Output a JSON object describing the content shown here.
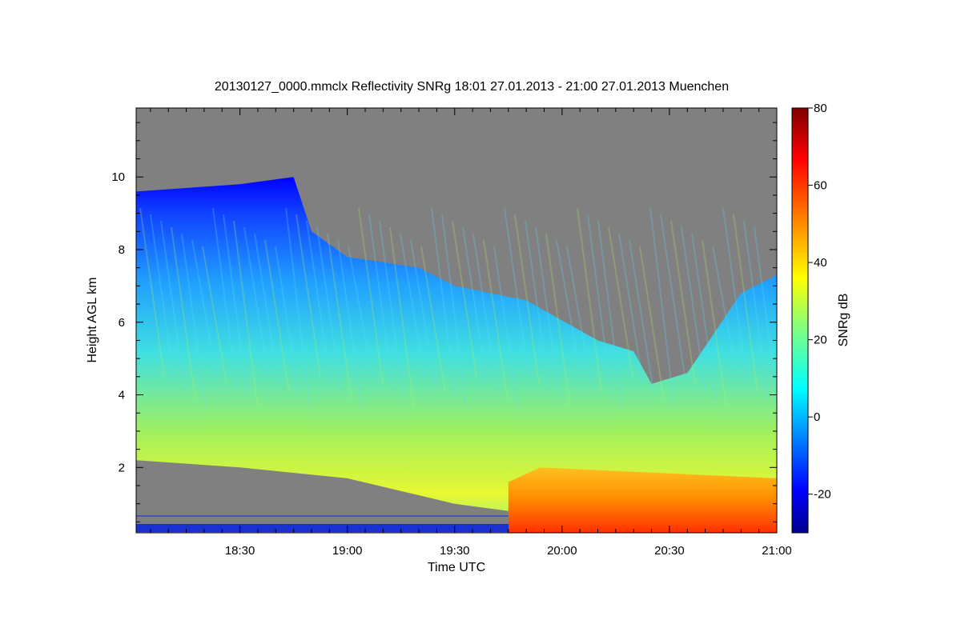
{
  "chart_data": {
    "type": "heatmap",
    "title": "20130127_0000.mmclx Reflectivity SNRg   18:01 27.01.2013 - 21:00 27.01.2013 Muenchen",
    "xlabel": "Time UTC",
    "ylabel": "Height AGL km",
    "colorbar_label": "SNRg dB",
    "x_ticks": [
      "18:30",
      "19:00",
      "19:30",
      "20:00",
      "20:30",
      "21:00"
    ],
    "x_tick_minutes": [
      30,
      60,
      90,
      120,
      150,
      180
    ],
    "xlim_minutes": [
      1,
      180
    ],
    "y_ticks": [
      2,
      4,
      6,
      8,
      10
    ],
    "ylim": [
      0.2,
      11.9
    ],
    "colorbar_ticks": [
      -20,
      0,
      20,
      40,
      60,
      80
    ],
    "colorbar_range": [
      -30,
      80
    ],
    "no_signal_color": "#808080",
    "colormap": [
      "#00008f",
      "#0000ff",
      "#0080ff",
      "#00ffff",
      "#80ff80",
      "#ffff00",
      "#ff8000",
      "#ff0000",
      "#800000"
    ],
    "cloud_top_km": {
      "time": [
        "18:01",
        "18:30",
        "18:45",
        "18:50",
        "19:00",
        "19:20",
        "19:30",
        "19:50",
        "20:10",
        "20:20",
        "20:25",
        "20:35",
        "20:50",
        "21:00"
      ],
      "height": [
        9.6,
        9.8,
        10.0,
        8.5,
        7.8,
        7.5,
        7.0,
        6.6,
        5.5,
        5.2,
        4.3,
        4.6,
        6.8,
        7.3
      ]
    },
    "cloud_base_km": {
      "time": [
        "18:01",
        "18:30",
        "19:00",
        "19:30",
        "19:45",
        "19:46",
        "21:00"
      ],
      "height": [
        2.2,
        2.0,
        1.7,
        1.0,
        0.8,
        0.3,
        0.3
      ]
    },
    "rain_region": {
      "start": "19:45",
      "end": "21:00",
      "top_km": 2.0,
      "snrg_db": 50
    }
  }
}
